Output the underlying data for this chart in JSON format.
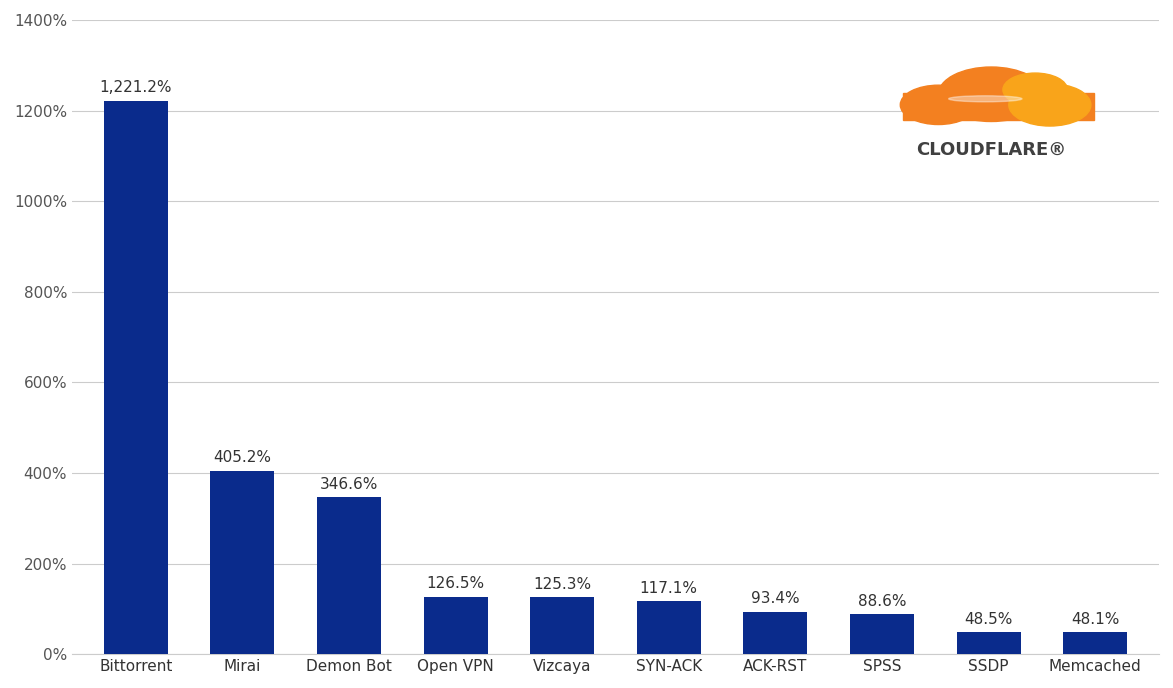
{
  "categories": [
    "Bittorrent",
    "Mirai",
    "Demon Bot",
    "Open VPN",
    "Vizcaya",
    "SYN-ACK",
    "ACK-RST",
    "SPSS",
    "SSDP",
    "Memcached"
  ],
  "values": [
    1221.2,
    405.2,
    346.6,
    126.5,
    125.3,
    117.1,
    93.4,
    88.6,
    48.5,
    48.1
  ],
  "labels": [
    "1,221.2%",
    "405.2%",
    "346.6%",
    "126.5%",
    "125.3%",
    "117.1%",
    "93.4%",
    "88.6%",
    "48.5%",
    "48.1%"
  ],
  "bar_color": "#0a2b8c",
  "background_color": "#ffffff",
  "grid_color": "#cccccc",
  "ylim": [
    0,
    1400
  ],
  "yticks": [
    0,
    200,
    400,
    600,
    800,
    1000,
    1200,
    1400
  ],
  "ytick_labels": [
    "0%",
    "200%",
    "400%",
    "600%",
    "800%",
    "1000%",
    "1200%",
    "1400%"
  ],
  "label_fontsize": 11,
  "tick_fontsize": 11,
  "bar_width": 0.6,
  "cloudflare_text": "CLOUDFLARE",
  "cloudflare_text_color": "#404040",
  "cloudflare_fontsize": 18
}
